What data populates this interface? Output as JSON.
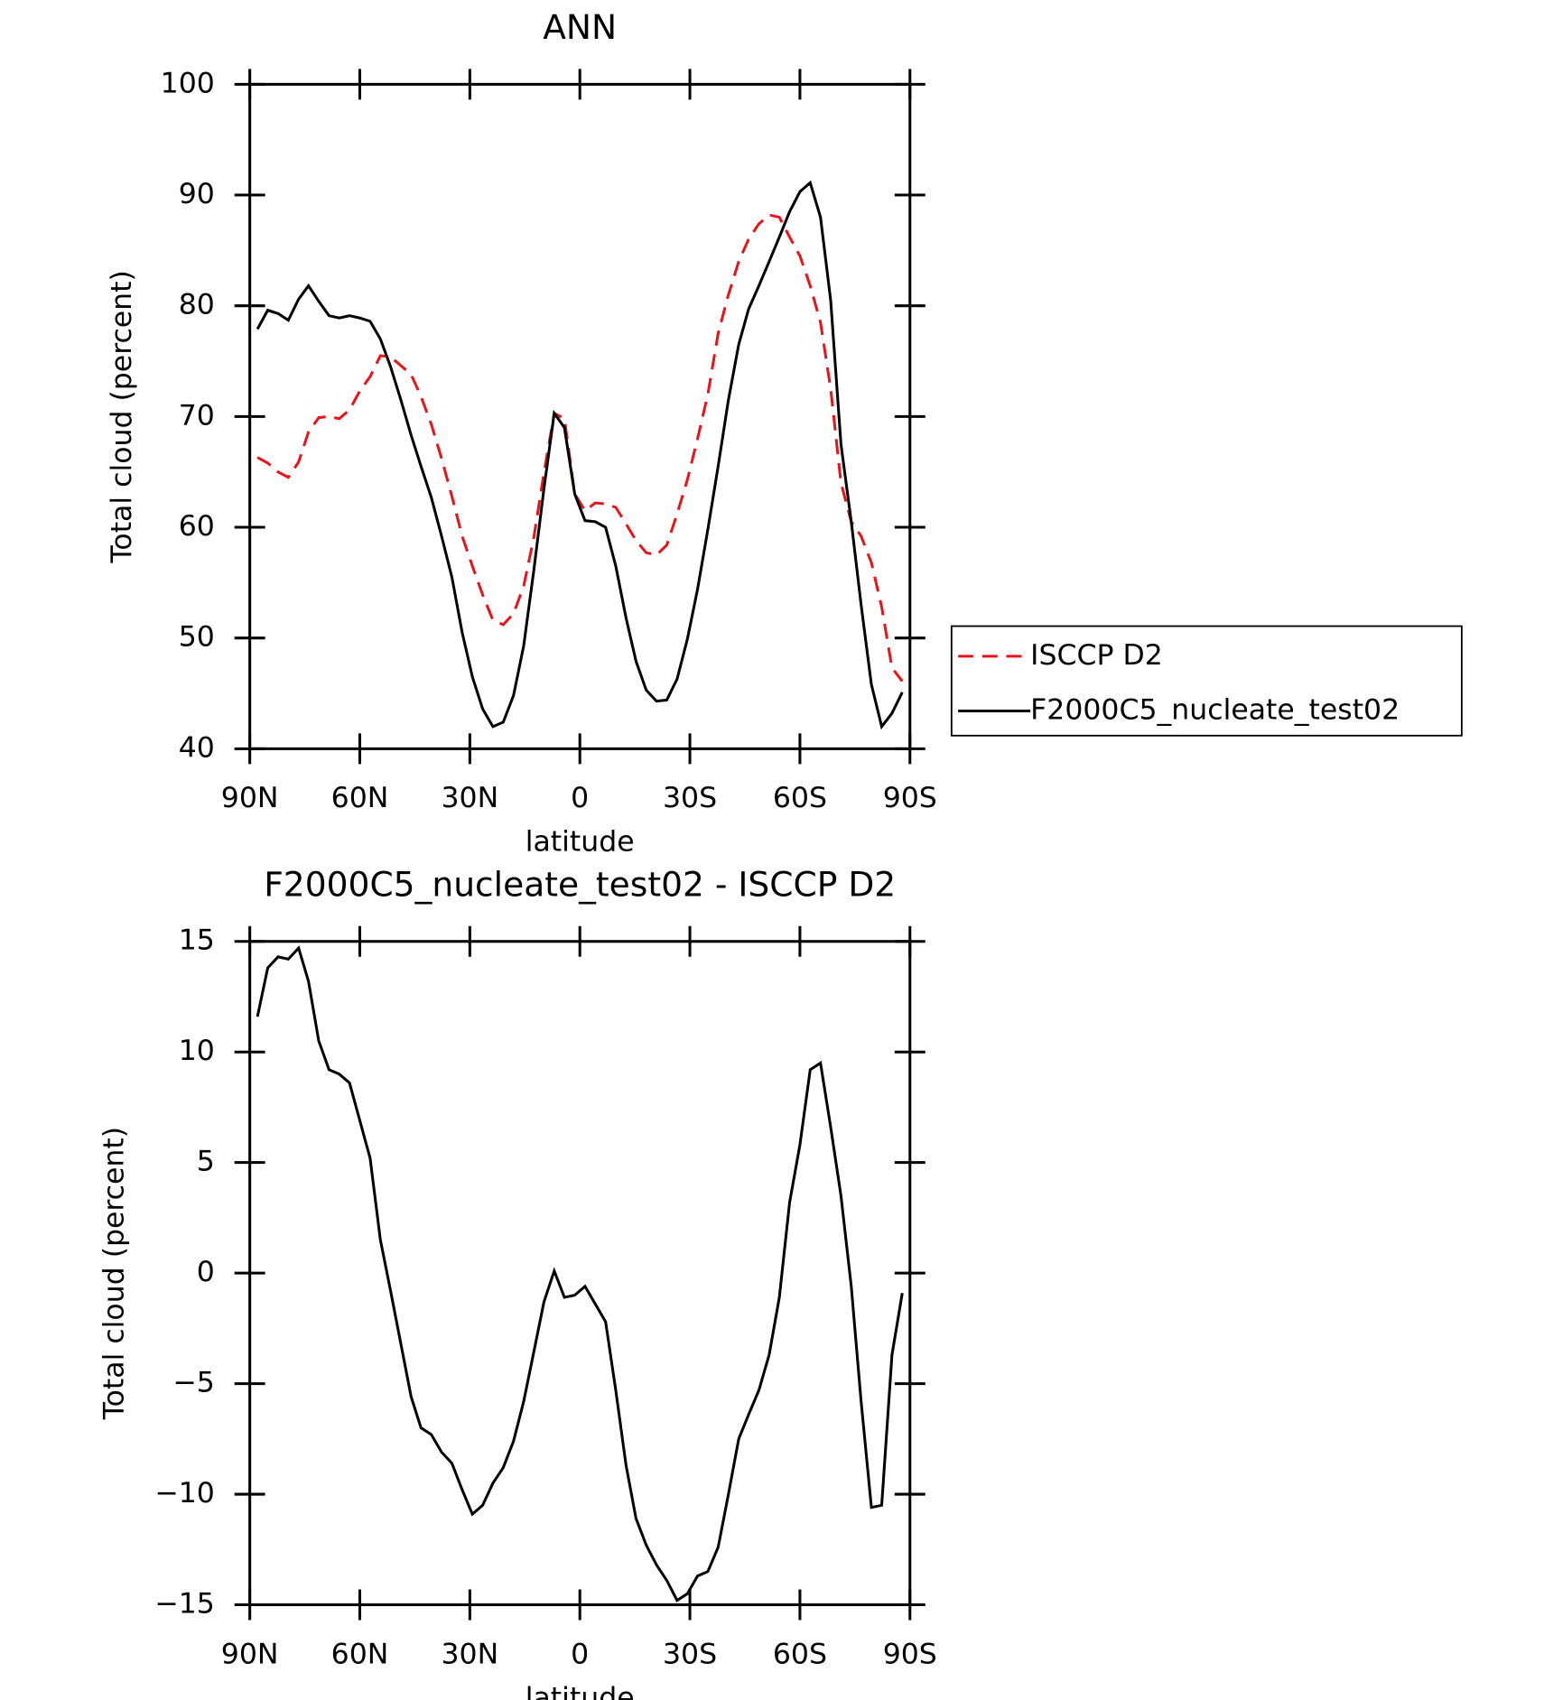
{
  "chart_data": [
    {
      "type": "line",
      "title": "ANN",
      "xlabel": "latitude",
      "ylabel": "Total cloud (percent)",
      "x": [
        87.9,
        85.1,
        82.3,
        79.5,
        76.7,
        74.0,
        71.2,
        68.4,
        65.6,
        62.8,
        60.0,
        57.2,
        54.4,
        51.6,
        48.8,
        46.0,
        43.3,
        40.5,
        37.7,
        34.9,
        32.1,
        29.3,
        26.5,
        23.7,
        20.9,
        18.1,
        15.3,
        12.6,
        9.8,
        7.0,
        4.2,
        1.4,
        -1.4,
        -4.2,
        -7.0,
        -9.8,
        -12.6,
        -15.3,
        -18.1,
        -20.9,
        -23.7,
        -26.5,
        -29.3,
        -32.1,
        -34.9,
        -37.7,
        -40.5,
        -43.3,
        -46.0,
        -48.8,
        -51.6,
        -54.4,
        -57.2,
        -60.0,
        -62.8,
        -65.6,
        -68.4,
        -71.2,
        -74.0,
        -76.7,
        -79.5,
        -82.3,
        -85.1,
        -87.9
      ],
      "series": [
        {
          "name": "ISCCP D2",
          "color": "#e8141c",
          "linestyle": "dashed",
          "values": [
            66.3,
            65.8,
            65.0,
            64.5,
            65.9,
            68.6,
            69.9,
            70.0,
            69.8,
            70.6,
            72.3,
            73.6,
            75.5,
            75.4,
            74.6,
            73.8,
            71.8,
            69.3,
            66.2,
            62.8,
            59.2,
            56.5,
            53.9,
            51.6,
            51.2,
            52.2,
            54.7,
            59.0,
            64.9,
            70.3,
            69.8,
            63.0,
            61.5,
            62.2,
            62.1,
            61.8,
            60.3,
            58.8,
            57.7,
            57.5,
            58.4,
            61.2,
            64.3,
            68.0,
            72.0,
            77.5,
            81.0,
            84.0,
            86.0,
            87.4,
            88.2,
            88.0,
            86.2,
            84.5,
            81.8,
            78.5,
            72.5,
            64.0,
            60.5,
            59.2,
            56.8,
            52.8,
            47.3,
            46.1
          ]
        },
        {
          "name": "F2000C5_nucleate_test02",
          "color": "#000000",
          "linestyle": "solid",
          "values": [
            77.9,
            79.6,
            79.3,
            78.7,
            80.6,
            81.8,
            80.4,
            79.1,
            78.9,
            79.1,
            78.9,
            78.6,
            77.0,
            74.5,
            71.5,
            68.3,
            65.5,
            62.7,
            59.2,
            55.5,
            50.5,
            46.5,
            43.6,
            42.0,
            42.4,
            44.8,
            49.3,
            56.0,
            63.5,
            70.3,
            69.0,
            63.0,
            60.6,
            60.5,
            60.0,
            56.5,
            51.8,
            47.9,
            45.3,
            44.3,
            44.4,
            46.3,
            49.9,
            54.4,
            59.8,
            65.5,
            71.5,
            76.5,
            79.7,
            81.8,
            84.0,
            86.2,
            88.5,
            90.3,
            91.1,
            88.0,
            80.5,
            67.5,
            60.5,
            53.0,
            45.8,
            42.0,
            43.2,
            45.1
          ]
        }
      ],
      "xlim": [
        90,
        -90
      ],
      "xticks": [
        {
          "value": 90,
          "label": "90N"
        },
        {
          "value": 60,
          "label": "60N"
        },
        {
          "value": 30,
          "label": "30N"
        },
        0,
        {
          "value": -30,
          "label": "30S"
        },
        {
          "value": -60,
          "label": "60S"
        },
        {
          "value": -90,
          "label": "90S"
        }
      ],
      "ylim": [
        40,
        100
      ],
      "yticks": [
        40,
        50,
        60,
        70,
        80,
        90,
        100
      ],
      "legend": "right"
    },
    {
      "type": "line",
      "title": "F2000C5_nucleate_test02 - ISCCP D2",
      "xlabel": "latitude",
      "ylabel": "Total cloud (percent)",
      "x": [
        87.9,
        85.1,
        82.3,
        79.5,
        76.7,
        74.0,
        71.2,
        68.4,
        65.6,
        62.8,
        60.0,
        57.2,
        54.4,
        51.6,
        48.8,
        46.0,
        43.3,
        40.5,
        37.7,
        34.9,
        32.1,
        29.3,
        26.5,
        23.7,
        20.9,
        18.1,
        15.3,
        12.6,
        9.8,
        7.0,
        4.2,
        1.4,
        -1.4,
        -4.2,
        -7.0,
        -9.8,
        -12.6,
        -15.3,
        -18.1,
        -20.9,
        -23.7,
        -26.5,
        -29.3,
        -32.1,
        -34.9,
        -37.7,
        -40.5,
        -43.3,
        -46.0,
        -48.8,
        -51.6,
        -54.4,
        -57.2,
        -60.0,
        -62.8,
        -65.6,
        -68.4,
        -71.2,
        -74.0,
        -76.7,
        -79.5,
        -82.3,
        -85.1,
        -87.9
      ],
      "values": [
        11.6,
        13.8,
        14.3,
        14.2,
        14.7,
        13.2,
        10.5,
        9.2,
        9.0,
        8.6,
        6.9,
        5.2,
        1.5,
        -0.8,
        -3.2,
        -5.6,
        -7.0,
        -7.3,
        -8.1,
        -8.6,
        -9.8,
        -10.9,
        -10.5,
        -9.5,
        -8.8,
        -7.6,
        -5.8,
        -3.6,
        -1.3,
        0.1,
        -1.1,
        -1.0,
        -0.6,
        -1.4,
        -2.2,
        -5.3,
        -8.7,
        -11.1,
        -12.3,
        -13.2,
        -13.9,
        -14.8,
        -14.5,
        -13.7,
        -13.5,
        -12.4,
        -10.0,
        -7.5,
        -6.4,
        -5.3,
        -3.7,
        -1.1,
        3.2,
        5.8,
        9.2,
        9.5,
        6.6,
        3.5,
        -0.6,
        -5.8,
        -10.6,
        -10.5,
        -3.7,
        -0.9
      ],
      "color": "#000000",
      "xlim": [
        90,
        -90
      ],
      "xticks": [
        {
          "value": 90,
          "label": "90N"
        },
        {
          "value": 60,
          "label": "60N"
        },
        {
          "value": 30,
          "label": "30N"
        },
        0,
        {
          "value": -30,
          "label": "30S"
        },
        {
          "value": -60,
          "label": "60S"
        },
        {
          "value": -90,
          "label": "90S"
        }
      ],
      "ylim": [
        -15,
        15
      ],
      "yticks": [
        {
          "value": -15,
          "label": "−15"
        },
        {
          "value": -10,
          "label": "−10"
        },
        {
          "value": -5,
          "label": "−5"
        },
        0,
        5,
        10,
        15
      ]
    }
  ]
}
